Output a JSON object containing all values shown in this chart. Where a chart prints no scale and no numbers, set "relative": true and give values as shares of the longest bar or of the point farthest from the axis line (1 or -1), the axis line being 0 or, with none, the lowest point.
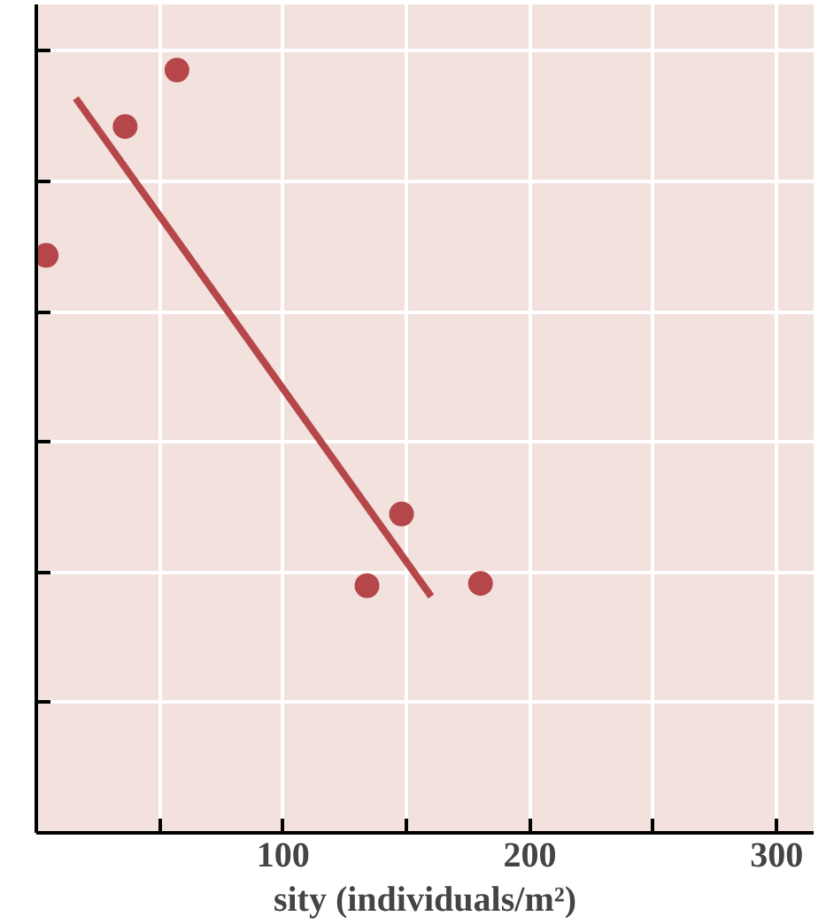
{
  "chart_data": {
    "type": "scatter",
    "relative": true,
    "xlabel": "sity (individuals/m²)",
    "series": [
      {
        "type": "scatter",
        "marker": "circle",
        "color": "#b5474b",
        "x": [
          4,
          36,
          57,
          134,
          148,
          180
        ],
        "values": [
          0.757,
          0.926,
          1,
          0.324,
          0.418,
          0.327
        ]
      },
      {
        "type": "line",
        "marker": "none",
        "color": "#b5474b",
        "x": [
          16,
          160
        ],
        "values": [
          0.963,
          0.31
        ]
      }
    ],
    "xlim": [
      0,
      315
    ],
    "xticks": [
      {
        "value": 50,
        "label": null
      },
      100,
      {
        "value": 150,
        "label": null
      },
      200,
      {
        "value": 250,
        "label": null
      },
      300
    ],
    "grid": true,
    "tick_labels": "x"
  }
}
